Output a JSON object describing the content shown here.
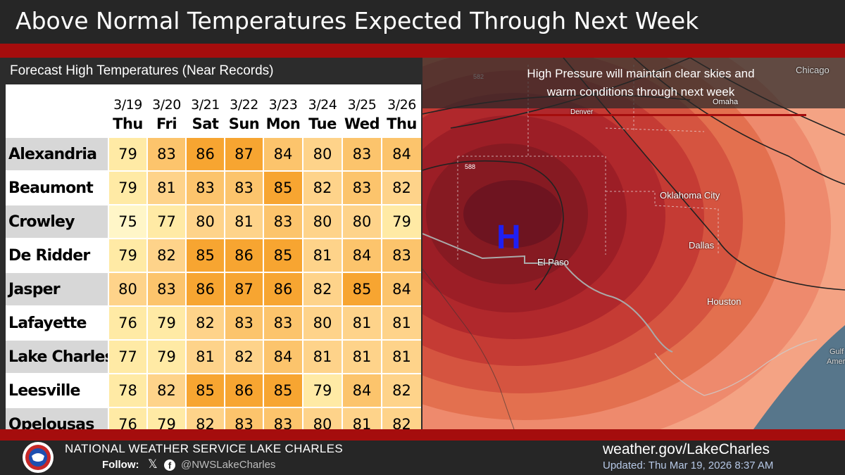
{
  "title": "Above Normal Temperatures Expected Through Next Week",
  "table": {
    "subtitle": "Forecast High Temperatures (Near Records)",
    "dates": [
      "3/19",
      "3/20",
      "3/21",
      "3/22",
      "3/23",
      "3/24",
      "3/25",
      "3/26"
    ],
    "days": [
      "Thu",
      "Fri",
      "Sat",
      "Sun",
      "Mon",
      "Tue",
      "Wed",
      "Thu"
    ],
    "rows": [
      {
        "city": "Alexandria",
        "temps": [
          "79",
          "83",
          "86",
          "87",
          "84",
          "80",
          "83",
          "84"
        ]
      },
      {
        "city": "Beaumont",
        "temps": [
          "79",
          "81",
          "83",
          "83",
          "85",
          "82",
          "83",
          "82"
        ]
      },
      {
        "city": "Crowley",
        "temps": [
          "75",
          "77",
          "80",
          "81",
          "83",
          "80",
          "80",
          "79"
        ]
      },
      {
        "city": "De Ridder",
        "temps": [
          "79",
          "82",
          "85",
          "86",
          "85",
          "81",
          "84",
          "83"
        ]
      },
      {
        "city": "Jasper",
        "temps": [
          "80",
          "83",
          "86",
          "87",
          "86",
          "82",
          "85",
          "84"
        ]
      },
      {
        "city": "Lafayette",
        "temps": [
          "76",
          "79",
          "82",
          "83",
          "83",
          "80",
          "81",
          "81"
        ]
      },
      {
        "city": "Lake Charles",
        "temps": [
          "77",
          "79",
          "81",
          "82",
          "84",
          "81",
          "81",
          "81"
        ]
      },
      {
        "city": "Leesville",
        "temps": [
          "78",
          "82",
          "85",
          "86",
          "85",
          "79",
          "84",
          "82"
        ]
      },
      {
        "city": "Opelousas",
        "temps": [
          "76",
          "79",
          "82",
          "83",
          "83",
          "80",
          "81",
          "82"
        ]
      }
    ]
  },
  "colors": {
    "t75": "#fff6c8",
    "t76_79": "#ffeaa5",
    "t80_82": "#fed38a",
    "t83_84": "#fcc46c",
    "t85_plus": "#f7a531",
    "brand_red": "#a50d0d"
  },
  "map": {
    "banner_line1": "High Pressure will maintain clear skies and",
    "banner_line2": "warm conditions through next week",
    "high_symbol": "H",
    "contour_582": "582",
    "contour_588": "588",
    "cities": {
      "chicago": "Chicago",
      "omaha": "Omaha",
      "denver": "Denver",
      "oklahoma_city": "Oklahoma City",
      "dallas": "Dallas",
      "el_paso": "El Paso",
      "houston": "Houston",
      "gulf": "Gulf of",
      "america": "Americ"
    }
  },
  "footer": {
    "org": "NATIONAL WEATHER SERVICE LAKE CHARLES",
    "follow": "Follow:",
    "x_icon": "𝕏",
    "facebook_icon": "f",
    "handle": "@NWSLakeCharles",
    "url": "weather.gov/LakeCharles",
    "updated": "Updated: Thu Mar 19, 2026 8:37 AM"
  }
}
